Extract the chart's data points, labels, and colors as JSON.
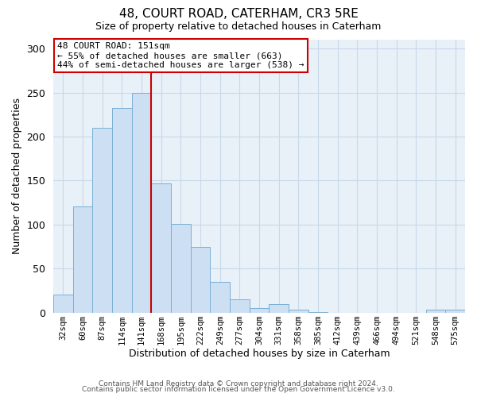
{
  "title": "48, COURT ROAD, CATERHAM, CR3 5RE",
  "subtitle": "Size of property relative to detached houses in Caterham",
  "xlabel": "Distribution of detached houses by size in Caterham",
  "ylabel": "Number of detached properties",
  "bar_labels": [
    "32sqm",
    "60sqm",
    "87sqm",
    "114sqm",
    "141sqm",
    "168sqm",
    "195sqm",
    "222sqm",
    "249sqm",
    "277sqm",
    "304sqm",
    "331sqm",
    "358sqm",
    "385sqm",
    "412sqm",
    "439sqm",
    "466sqm",
    "494sqm",
    "521sqm",
    "548sqm",
    "575sqm"
  ],
  "bar_values": [
    20,
    121,
    210,
    232,
    250,
    147,
    101,
    75,
    35,
    15,
    5,
    10,
    3,
    1,
    0,
    0,
    0,
    0,
    0,
    3,
    3
  ],
  "bar_color": "#ccdff3",
  "bar_edge_color": "#7ab0d4",
  "vline_x": 4.5,
  "vline_color": "#cc0000",
  "annotation_title": "48 COURT ROAD: 151sqm",
  "annotation_line1": "← 55% of detached houses are smaller (663)",
  "annotation_line2": "44% of semi-detached houses are larger (538) →",
  "annotation_box_color": "#ffffff",
  "annotation_box_edge": "#cc0000",
  "ylim": [
    0,
    310
  ],
  "yticks": [
    0,
    50,
    100,
    150,
    200,
    250,
    300
  ],
  "footer1": "Contains HM Land Registry data © Crown copyright and database right 2024.",
  "footer2": "Contains public sector information licensed under the Open Government Licence v3.0.",
  "background_color": "#ffffff",
  "grid_color": "#c8d8ea"
}
